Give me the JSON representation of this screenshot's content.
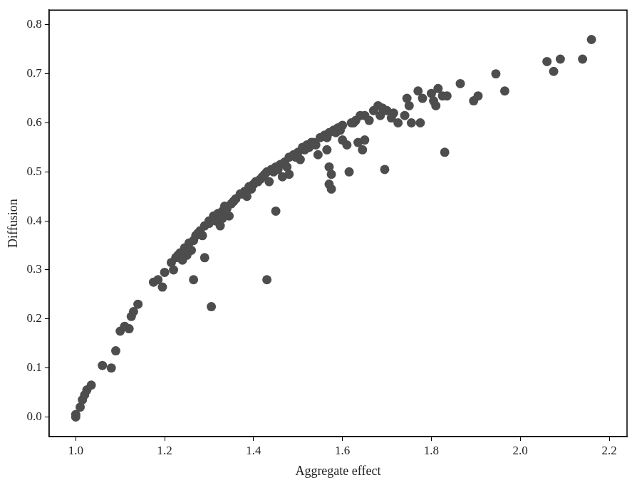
{
  "chart_data": {
    "type": "scatter",
    "x_label": "Aggregate effect",
    "y_label": "Diffusion",
    "color": "#4d4d4d",
    "marker": "circle",
    "grid": false,
    "xlim": [
      0.94,
      2.24
    ],
    "ylim": [
      -0.04,
      0.83
    ],
    "xticks": [
      {
        "value": 1,
        "label": "1.0"
      },
      1.2,
      1.4,
      1.6,
      1.8,
      {
        "value": 2,
        "label": "2.0"
      },
      2.2
    ],
    "yticks": [
      {
        "value": 0,
        "label": "0.0"
      },
      0.1,
      0.2,
      0.3,
      0.4,
      0.5,
      0.6,
      0.7,
      0.8
    ],
    "x": [
      1.0,
      1.0,
      1.01,
      1.015,
      1.02,
      1.025,
      1.035,
      1.06,
      1.08,
      1.09,
      1.1,
      1.11,
      1.12,
      1.125,
      1.13,
      1.14,
      1.175,
      1.185,
      1.195,
      1.2,
      1.215,
      1.22,
      1.225,
      1.235,
      1.24,
      1.245,
      1.25,
      1.255,
      1.26,
      1.265,
      1.265,
      1.27,
      1.28,
      1.285,
      1.29,
      1.29,
      1.3,
      1.305,
      1.31,
      1.315,
      1.32,
      1.325,
      1.33,
      1.335,
      1.34,
      1.345,
      1.35,
      1.36,
      1.37,
      1.38,
      1.385,
      1.39,
      1.4,
      1.41,
      1.42,
      1.43,
      1.43,
      1.435,
      1.44,
      1.45,
      1.45,
      1.46,
      1.465,
      1.47,
      1.48,
      1.48,
      1.49,
      1.5,
      1.505,
      1.51,
      1.52,
      1.53,
      1.54,
      1.545,
      1.55,
      1.56,
      1.565,
      1.57,
      1.57,
      1.575,
      1.57,
      1.575,
      1.58,
      1.59,
      1.6,
      1.6,
      1.61,
      1.615,
      1.62,
      1.63,
      1.635,
      1.64,
      1.645,
      1.65,
      1.65,
      1.66,
      1.67,
      1.68,
      1.685,
      1.69,
      1.695,
      1.7,
      1.71,
      1.715,
      1.725,
      1.74,
      1.745,
      1.75,
      1.755,
      1.77,
      1.775,
      1.78,
      1.8,
      1.805,
      1.81,
      1.815,
      1.825,
      1.83,
      1.835,
      1.865,
      1.895,
      1.905,
      1.945,
      1.965,
      2.06,
      2.075,
      2.09,
      2.14,
      2.16,
      1.23,
      1.245,
      1.275,
      1.3,
      1.33,
      1.355,
      1.375,
      1.395,
      1.405,
      1.415,
      1.425,
      1.445,
      1.455,
      1.475,
      1.495,
      1.515,
      1.525,
      1.535,
      1.565,
      1.585,
      1.595,
      1.625
    ],
    "values": [
      0.0,
      0.005,
      0.02,
      0.035,
      0.045,
      0.055,
      0.065,
      0.105,
      0.1,
      0.135,
      0.175,
      0.185,
      0.18,
      0.205,
      0.215,
      0.23,
      0.275,
      0.28,
      0.265,
      0.295,
      0.315,
      0.3,
      0.325,
      0.335,
      0.32,
      0.345,
      0.33,
      0.355,
      0.34,
      0.36,
      0.28,
      0.37,
      0.38,
      0.37,
      0.325,
      0.39,
      0.4,
      0.225,
      0.41,
      0.4,
      0.415,
      0.39,
      0.42,
      0.43,
      0.425,
      0.41,
      0.435,
      0.445,
      0.455,
      0.46,
      0.45,
      0.47,
      0.475,
      0.48,
      0.49,
      0.5,
      0.28,
      0.48,
      0.505,
      0.51,
      0.42,
      0.515,
      0.49,
      0.52,
      0.495,
      0.53,
      0.535,
      0.54,
      0.525,
      0.55,
      0.555,
      0.56,
      0.555,
      0.535,
      0.57,
      0.575,
      0.545,
      0.58,
      0.51,
      0.495,
      0.475,
      0.465,
      0.585,
      0.59,
      0.595,
      0.565,
      0.555,
      0.5,
      0.6,
      0.605,
      0.56,
      0.615,
      0.545,
      0.615,
      0.565,
      0.605,
      0.625,
      0.635,
      0.615,
      0.63,
      0.505,
      0.625,
      0.61,
      0.62,
      0.6,
      0.615,
      0.65,
      0.635,
      0.6,
      0.665,
      0.6,
      0.65,
      0.66,
      0.645,
      0.635,
      0.67,
      0.655,
      0.54,
      0.655,
      0.68,
      0.645,
      0.655,
      0.7,
      0.665,
      0.725,
      0.705,
      0.73,
      0.73,
      0.77,
      0.33,
      0.335,
      0.375,
      0.395,
      0.405,
      0.44,
      0.455,
      0.465,
      0.48,
      0.485,
      0.495,
      0.5,
      0.505,
      0.51,
      0.53,
      0.545,
      0.55,
      0.56,
      0.57,
      0.58,
      0.585,
      0.6
    ]
  }
}
